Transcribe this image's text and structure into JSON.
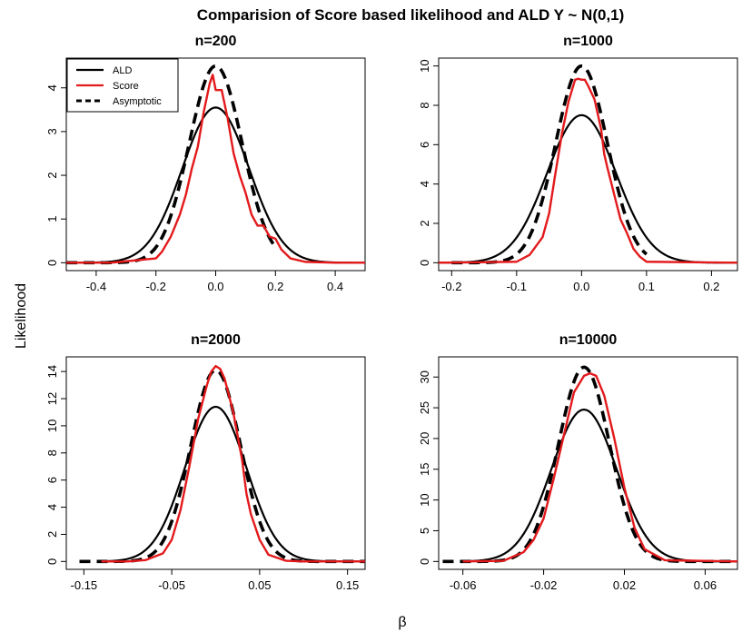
{
  "figure": {
    "title": "Comparision of Score based likelihood and ALD   Y ~ N(0,1)",
    "ylabel": "Likelihood",
    "xlabel": "β"
  },
  "legend": {
    "placement": "top-left of first panel",
    "entries": [
      {
        "label": "ALD",
        "color": "#000000",
        "style": "solid"
      },
      {
        "label": "Score",
        "color": "#e31a1c",
        "style": "solid"
      },
      {
        "label": "Asymptotic",
        "color": "#000000",
        "style": "dashed"
      }
    ]
  },
  "colors": {
    "ald": "#000000",
    "score": "#e31a1c",
    "asymptotic": "#000000"
  },
  "chart_data": [
    {
      "type": "line",
      "title": "n=200",
      "xlim": [
        -0.5,
        0.5
      ],
      "ylim": [
        0,
        4.5
      ],
      "xticks": [
        -0.4,
        -0.2,
        0,
        0.2,
        0.4
      ],
      "xtick_labels": [
        "-0.4",
        "-0.2",
        "0.0",
        "0.2",
        "0.4"
      ],
      "yticks": [
        0,
        1,
        2,
        3,
        4
      ],
      "ytick_labels": [
        "0",
        "1",
        "2",
        "3",
        "4"
      ],
      "asymptotic": {
        "peak": 4.5,
        "sd": 0.0887,
        "x_range": [
          -0.5,
          0.2
        ]
      },
      "ald": {
        "peak": 3.55,
        "sd": 0.112,
        "x_range": [
          -0.5,
          0.5
        ]
      },
      "score": {
        "x": [
          -0.5,
          -0.35,
          -0.2,
          -0.18,
          -0.15,
          -0.12,
          -0.1,
          -0.08,
          -0.06,
          -0.04,
          -0.02,
          -0.01,
          0.0,
          0.01,
          0.02,
          0.04,
          0.06,
          0.08,
          0.1,
          0.12,
          0.14,
          0.16,
          0.18,
          0.2,
          0.22,
          0.25,
          0.3,
          0.4,
          0.5
        ],
        "y": [
          0.0,
          0.0,
          0.1,
          0.25,
          0.6,
          1.1,
          1.55,
          2.15,
          2.65,
          3.45,
          4.1,
          4.3,
          3.95,
          3.95,
          3.95,
          3.3,
          2.5,
          2.0,
          1.6,
          1.1,
          0.85,
          0.85,
          0.6,
          0.55,
          0.3,
          0.1,
          0.02,
          0.0,
          0.0
        ]
      }
    },
    {
      "type": "line",
      "title": "n=1000",
      "xlim": [
        -0.22,
        0.24
      ],
      "ylim": [
        0,
        10
      ],
      "xticks": [
        -0.2,
        -0.1,
        0,
        0.1,
        0.2
      ],
      "xtick_labels": [
        "-0.2",
        "-0.1",
        "0.0",
        "0.1",
        "0.2"
      ],
      "yticks": [
        0,
        2,
        4,
        6,
        8,
        10
      ],
      "ytick_labels": [
        "0",
        "2",
        "4",
        "6",
        "8",
        "10"
      ],
      "asymptotic": {
        "peak": 10.0,
        "sd": 0.0399,
        "x_range": [
          -0.2,
          0.1
        ]
      },
      "ald": {
        "peak": 7.5,
        "sd": 0.0532,
        "x_range": [
          -0.22,
          0.24
        ]
      },
      "score": {
        "x": [
          -0.22,
          -0.1,
          -0.08,
          -0.06,
          -0.05,
          -0.04,
          -0.03,
          -0.02,
          -0.01,
          -0.005,
          0.0,
          0.005,
          0.01,
          0.02,
          0.03,
          0.035,
          0.04,
          0.05,
          0.06,
          0.07,
          0.08,
          0.09,
          0.1,
          0.24
        ],
        "y": [
          0.0,
          0.05,
          0.4,
          1.3,
          2.5,
          4.6,
          6.6,
          8.2,
          9.3,
          9.35,
          9.3,
          9.3,
          9.0,
          8.3,
          6.8,
          5.5,
          4.8,
          3.5,
          2.2,
          1.5,
          0.7,
          0.3,
          0.05,
          0.0
        ]
      }
    },
    {
      "type": "line",
      "title": "n=2000",
      "xlim": [
        -0.17,
        0.17
      ],
      "ylim": [
        0,
        14.5
      ],
      "xticks": [
        -0.15,
        -0.05,
        0.05,
        0.15
      ],
      "xtick_labels": [
        "-0.15",
        "-0.05",
        "0.05",
        "0.15"
      ],
      "yticks": [
        0,
        2,
        4,
        6,
        8,
        10,
        12,
        14
      ],
      "ytick_labels": [
        "0",
        "2",
        "4",
        "6",
        "8",
        "10",
        "12",
        "14"
      ],
      "asymptotic": {
        "peak": 14.1,
        "sd": 0.0283,
        "x_range": [
          -0.155,
          0.17
        ]
      },
      "ald": {
        "peak": 11.4,
        "sd": 0.035,
        "x_range": [
          -0.13,
          0.17
        ]
      },
      "score": {
        "x": [
          -0.13,
          -0.1,
          -0.08,
          -0.06,
          -0.05,
          -0.04,
          -0.03,
          -0.02,
          -0.01,
          -0.005,
          0.0,
          0.005,
          0.01,
          0.02,
          0.03,
          0.035,
          0.04,
          0.05,
          0.06,
          0.08,
          0.1,
          0.17
        ],
        "y": [
          0.0,
          0.0,
          0.1,
          0.6,
          1.6,
          3.8,
          7.0,
          10.5,
          13.0,
          14.0,
          14.4,
          14.2,
          13.5,
          11.0,
          7.5,
          5.0,
          3.5,
          1.6,
          0.5,
          0.05,
          0.0,
          0.0
        ]
      }
    },
    {
      "type": "line",
      "title": "n=10000",
      "xlim": [
        -0.072,
        0.076
      ],
      "ylim": [
        0,
        32
      ],
      "xticks": [
        -0.06,
        -0.02,
        0.02,
        0.06
      ],
      "xtick_labels": [
        "-0.06",
        "-0.02",
        "0.02",
        "0.06"
      ],
      "yticks": [
        0,
        5,
        10,
        15,
        20,
        25,
        30
      ],
      "ytick_labels": [
        "0",
        "5",
        "10",
        "15",
        "20",
        "25",
        "30"
      ],
      "asymptotic": {
        "peak": 31.6,
        "sd": 0.01262,
        "x_range": [
          -0.07,
          0.076
        ]
      },
      "ald": {
        "peak": 24.7,
        "sd": 0.0162,
        "x_range": [
          -0.06,
          0.076
        ]
      },
      "score": {
        "x": [
          -0.06,
          -0.04,
          -0.03,
          -0.025,
          -0.02,
          -0.015,
          -0.01,
          -0.005,
          0.0,
          0.003,
          0.006,
          0.01,
          0.015,
          0.02,
          0.025,
          0.03,
          0.04,
          0.076
        ],
        "y": [
          0.0,
          0.1,
          1.5,
          3.5,
          7.0,
          13.5,
          20.5,
          27.5,
          30.2,
          30.6,
          30.2,
          27.0,
          20.0,
          12.0,
          5.5,
          2.0,
          0.2,
          0.0
        ]
      }
    }
  ]
}
